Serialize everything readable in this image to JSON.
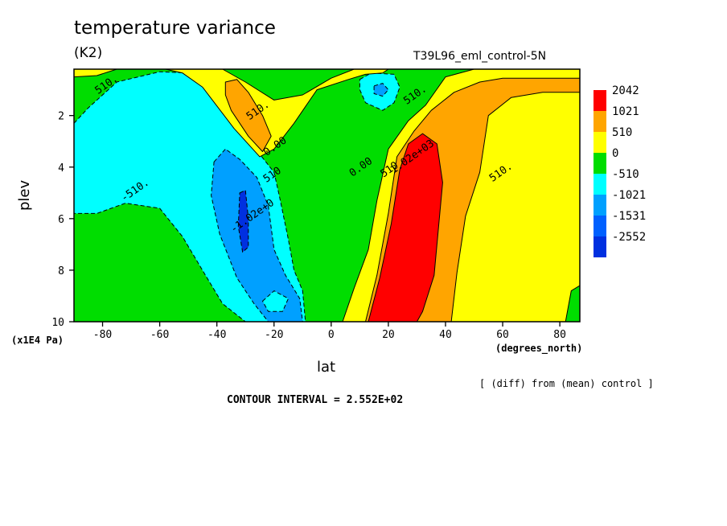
{
  "chart_data": {
    "type": "heatmap",
    "title": "temperature variance",
    "units": "(K2)",
    "run_label": "T39L96_eml_control-5N",
    "xlabel": "lat",
    "x_units": "(degrees_north)",
    "ylabel": "plev",
    "y_units": "(x1E4 Pa)",
    "xlim": [
      -90,
      87
    ],
    "ylim": [
      0.2,
      10
    ],
    "x_ticks": [
      -80,
      -60,
      -40,
      -20,
      0,
      20,
      40,
      60,
      80
    ],
    "y_ticks": [
      2,
      4,
      6,
      8,
      10
    ],
    "levels": [
      -2552,
      -1531,
      -1021,
      -510,
      0,
      510,
      1021,
      2042
    ],
    "legend": [
      {
        "label": "2042",
        "color": "#ff0000"
      },
      {
        "label": "1021",
        "color": "#ffa500"
      },
      {
        "label": "510",
        "color": "#ffff00"
      },
      {
        "label": "0",
        "color": "#00dd00"
      },
      {
        "label": "-510",
        "color": "#00ffff"
      },
      {
        "label": "-1021",
        "color": "#00a0ff"
      },
      {
        "label": "-1531",
        "color": "#0060ff"
      },
      {
        "label": "-2552",
        "color": "#0030e0"
      }
    ],
    "regions": [
      {
        "level": "-510",
        "color": "#00ffff",
        "poly": [
          [
            -90,
            2.3
          ],
          [
            -85,
            1.7
          ],
          [
            -75,
            0.7
          ],
          [
            -60,
            0.3
          ],
          [
            -50,
            0.35
          ],
          [
            -46,
            0.6
          ],
          [
            -40,
            1.3
          ],
          [
            -32,
            2.3
          ],
          [
            -25,
            3.5
          ],
          [
            -20,
            4.2
          ],
          [
            -18,
            5.2
          ],
          [
            -15,
            6.8
          ],
          [
            -13,
            8
          ],
          [
            -10,
            8.8
          ],
          [
            -9,
            10
          ],
          [
            -30,
            10
          ],
          [
            -38,
            9.3
          ],
          [
            -44,
            8.2
          ],
          [
            -52,
            6.7
          ],
          [
            -60,
            5.6
          ],
          [
            -72,
            5.4
          ],
          [
            -82,
            5.8
          ],
          [
            -90,
            5.8
          ]
        ]
      },
      {
        "level": "-510",
        "color": "#00ffff",
        "poly": [
          [
            10,
            0.6
          ],
          [
            14,
            0.35
          ],
          [
            22,
            0.4
          ],
          [
            24,
            0.9
          ],
          [
            22,
            1.5
          ],
          [
            18,
            1.8
          ],
          [
            12,
            1.5
          ],
          [
            10,
            1.0
          ]
        ]
      },
      {
        "level": "-1021",
        "color": "#00a0ff",
        "poly": [
          [
            -41,
            3.8
          ],
          [
            -37,
            3.3
          ],
          [
            -32,
            3.7
          ],
          [
            -26,
            4.4
          ],
          [
            -22,
            5.5
          ],
          [
            -20,
            7.2
          ],
          [
            -16,
            8.2
          ],
          [
            -11,
            9.1
          ],
          [
            -10,
            10
          ],
          [
            -22,
            10
          ],
          [
            -27,
            9.3
          ],
          [
            -33,
            8.3
          ],
          [
            -39,
            6.6
          ],
          [
            -42,
            5.1
          ]
        ]
      },
      {
        "level": "-1021",
        "color": "#00a0ff",
        "poly": [
          [
            15,
            0.85
          ],
          [
            18,
            0.75
          ],
          [
            20,
            1.0
          ],
          [
            18,
            1.25
          ],
          [
            15,
            1.15
          ]
        ]
      },
      {
        "level": "-2552",
        "color": "#0030e0",
        "poly": [
          [
            -32,
            5.0
          ],
          [
            -30,
            4.9
          ],
          [
            -29,
            6.0
          ],
          [
            -29,
            7.1
          ],
          [
            -31,
            7.3
          ],
          [
            -32.5,
            6.3
          ]
        ]
      },
      {
        "level": "510",
        "color": "#ffff00",
        "poly": [
          [
            -58,
            0.2
          ],
          [
            -47,
            0.2
          ],
          [
            -38,
            0.2
          ],
          [
            -30,
            0.7
          ],
          [
            -20,
            1.4
          ],
          [
            -10,
            1.2
          ],
          [
            0,
            0.55
          ],
          [
            8,
            0.2
          ],
          [
            20,
            0.2
          ],
          [
            18,
            0.35
          ],
          [
            12,
            0.4
          ],
          [
            6,
            0.6
          ],
          [
            -5,
            1.0
          ],
          [
            -13,
            2.3
          ],
          [
            -20,
            3.3
          ],
          [
            -25,
            3.6
          ],
          [
            -34,
            2.5
          ],
          [
            -45,
            0.9
          ],
          [
            -52,
            0.35
          ]
        ]
      },
      {
        "level": "510",
        "color": "#ffff00",
        "poly": [
          [
            4,
            10
          ],
          [
            8,
            8.7
          ],
          [
            13,
            7.2
          ],
          [
            16,
            5.3
          ],
          [
            20,
            3.3
          ],
          [
            27,
            2.2
          ],
          [
            33,
            1.6
          ],
          [
            40,
            0.5
          ],
          [
            50,
            0.2
          ],
          [
            87,
            0.2
          ],
          [
            87,
            10
          ]
        ]
      },
      {
        "level": "510",
        "color": "#ffff00",
        "poly": [
          [
            -90,
            0.2
          ],
          [
            -75,
            0.2
          ],
          [
            -82,
            0.45
          ],
          [
            -90,
            0.5
          ]
        ]
      },
      {
        "level": "1021",
        "color": "#ffa500",
        "poly": [
          [
            -37,
            0.7
          ],
          [
            -33,
            0.6
          ],
          [
            -29,
            1.1
          ],
          [
            -24,
            2.0
          ],
          [
            -21,
            2.8
          ],
          [
            -24,
            3.4
          ],
          [
            -29,
            2.8
          ],
          [
            -35,
            1.8
          ],
          [
            -37,
            1.2
          ]
        ]
      },
      {
        "level": "1021",
        "color": "#ffa500",
        "poly": [
          [
            12,
            10
          ],
          [
            16,
            8.2
          ],
          [
            20,
            5.8
          ],
          [
            23,
            3.6
          ],
          [
            29,
            2.6
          ],
          [
            35,
            1.8
          ],
          [
            43,
            1.1
          ],
          [
            52,
            0.7
          ],
          [
            60,
            0.55
          ],
          [
            87,
            0.55
          ],
          [
            87,
            1.1
          ],
          [
            74,
            1.1
          ],
          [
            63,
            1.3
          ],
          [
            55,
            2.0
          ],
          [
            52,
            4.2
          ],
          [
            47,
            5.9
          ],
          [
            44,
            8.1
          ],
          [
            42,
            10
          ]
        ]
      },
      {
        "level": "2042",
        "color": "#ff0000",
        "poly": [
          [
            13,
            10
          ],
          [
            17,
            8.3
          ],
          [
            21,
            6.2
          ],
          [
            24,
            4.1
          ],
          [
            27,
            3.1
          ],
          [
            32,
            2.7
          ],
          [
            37,
            3.1
          ],
          [
            39,
            4.6
          ],
          [
            36,
            8.2
          ],
          [
            32,
            9.6
          ],
          [
            30,
            10
          ]
        ]
      },
      {
        "level": "-510",
        "color": "#00ffff",
        "poly": [
          [
            -24,
            9.2
          ],
          [
            -20,
            8.8
          ],
          [
            -15,
            9.1
          ],
          [
            -17,
            9.6
          ],
          [
            -22,
            9.6
          ]
        ]
      },
      {
        "level": "0",
        "color": "#00dd00",
        "poly": [
          [
            82,
            10
          ],
          [
            84,
            8.8
          ],
          [
            87,
            8.6
          ],
          [
            87,
            10
          ]
        ]
      }
    ],
    "contour_labels": [
      {
        "text": "510.",
        "x": -78,
        "y": 0.9
      },
      {
        "text": "510.",
        "x": -25,
        "y": 1.9
      },
      {
        "text": "0.00",
        "x": -19,
        "y": 3.3
      },
      {
        "text": "510.",
        "x": 30,
        "y": 1.3
      },
      {
        "text": "-510.",
        "x": -68,
        "y": 5.0
      },
      {
        "text": "510",
        "x": -20,
        "y": 4.4
      },
      {
        "text": "-1.02e+0",
        "x": -27,
        "y": 6.0
      },
      {
        "text": "0.00",
        "x": 11,
        "y": 4.1
      },
      {
        "text": "510",
        "x": 21,
        "y": 4.2
      },
      {
        "text": "1.02e+03",
        "x": 29,
        "y": 3.7
      },
      {
        "text": "510.",
        "x": 60,
        "y": 4.3
      }
    ],
    "diff_note": "[ (diff) from (mean) control ]",
    "contour_interval": "CONTOUR INTERVAL = 2.552E+02"
  }
}
